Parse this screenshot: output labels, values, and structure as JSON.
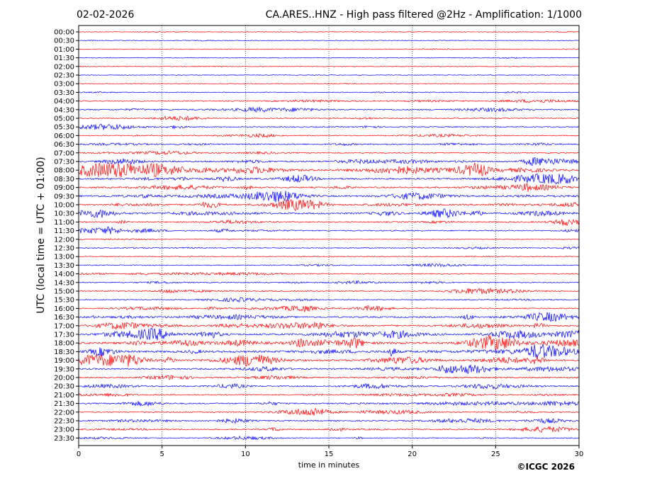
{
  "header": {
    "date": "02-02-2026",
    "station_title": "CA.ARES..HNZ - High pass filtered @2Hz - Amplification: 1/1000"
  },
  "copyright": "©ICGC 2026",
  "colors": {
    "odd_trace": "#ff0000",
    "even_trace": "#0000ff",
    "axes": "#000000",
    "grid": "#000000"
  },
  "chart_data": {
    "type": "line",
    "title": "CA.ARES..HNZ - High pass filtered @2Hz - Amplification: 1/1000",
    "xlabel": "time in minutes",
    "ylabel": "UTC (local time = UTC + 01:00)",
    "xlim": [
      0,
      30
    ],
    "x_ticks": [
      0,
      5,
      10,
      15,
      20,
      25,
      30
    ],
    "grid": "vertical dotted lines at 5-minute intervals",
    "rows": [
      "00:00",
      "00:30",
      "01:00",
      "01:30",
      "02:00",
      "02:30",
      "03:00",
      "03:30",
      "04:00",
      "04:30",
      "05:00",
      "05:30",
      "06:00",
      "06:30",
      "07:00",
      "07:30",
      "08:00",
      "08:30",
      "09:00",
      "09:30",
      "10:00",
      "10:30",
      "11:00",
      "11:30",
      "12:00",
      "12:30",
      "13:00",
      "13:30",
      "14:00",
      "14:30",
      "15:00",
      "15:30",
      "16:00",
      "16:30",
      "17:00",
      "17:30",
      "18:00",
      "18:30",
      "19:00",
      "19:30",
      "20:00",
      "20:30",
      "21:00",
      "21:30",
      "22:00",
      "22:30",
      "23:00",
      "23:30"
    ],
    "trace_color_pattern": [
      "blue",
      "red"
    ],
    "relative_activity": [
      0.03,
      0.05,
      0.04,
      0.06,
      0.05,
      0.03,
      0.06,
      0.1,
      0.25,
      0.35,
      0.2,
      0.25,
      0.2,
      0.3,
      0.25,
      0.5,
      0.75,
      0.55,
      0.45,
      0.5,
      0.5,
      0.55,
      0.3,
      0.3,
      0.05,
      0.15,
      0.1,
      0.15,
      0.2,
      0.2,
      0.25,
      0.2,
      0.3,
      0.45,
      0.55,
      0.65,
      0.8,
      0.75,
      0.6,
      0.45,
      0.35,
      0.35,
      0.3,
      0.35,
      0.3,
      0.35,
      0.3,
      0.15
    ]
  }
}
